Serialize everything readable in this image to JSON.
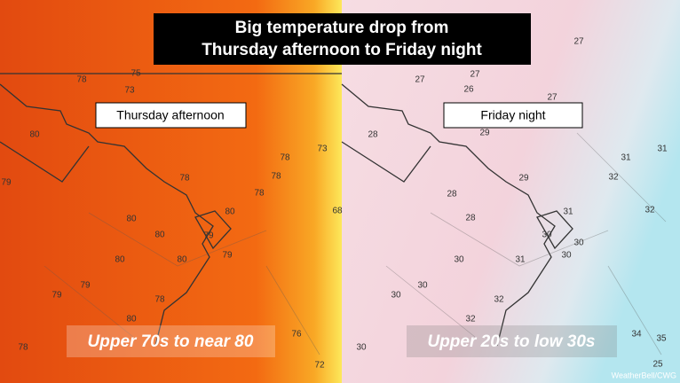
{
  "title": {
    "line1": "Big temperature drop from",
    "line2": "Thursday afternoon to Friday night"
  },
  "left": {
    "label": "Thursday afternoon",
    "caption": "Upper 70s to near 80",
    "temps": [
      75,
      78,
      73,
      80,
      79,
      78,
      78,
      73,
      78,
      78,
      80,
      80,
      79,
      80,
      79,
      80,
      80,
      68,
      79,
      79,
      78,
      80,
      78,
      76,
      72
    ]
  },
  "right": {
    "label": "Friday night",
    "caption": "Upper 20s to low 30s",
    "temps": [
      27,
      27,
      27,
      26,
      27,
      28,
      29,
      31,
      31,
      32,
      29,
      28,
      28,
      31,
      32,
      30,
      30,
      30,
      31,
      30,
      30,
      30,
      32,
      32,
      30,
      34,
      35,
      25
    ]
  },
  "credit": "WeatherBell/CWG"
}
